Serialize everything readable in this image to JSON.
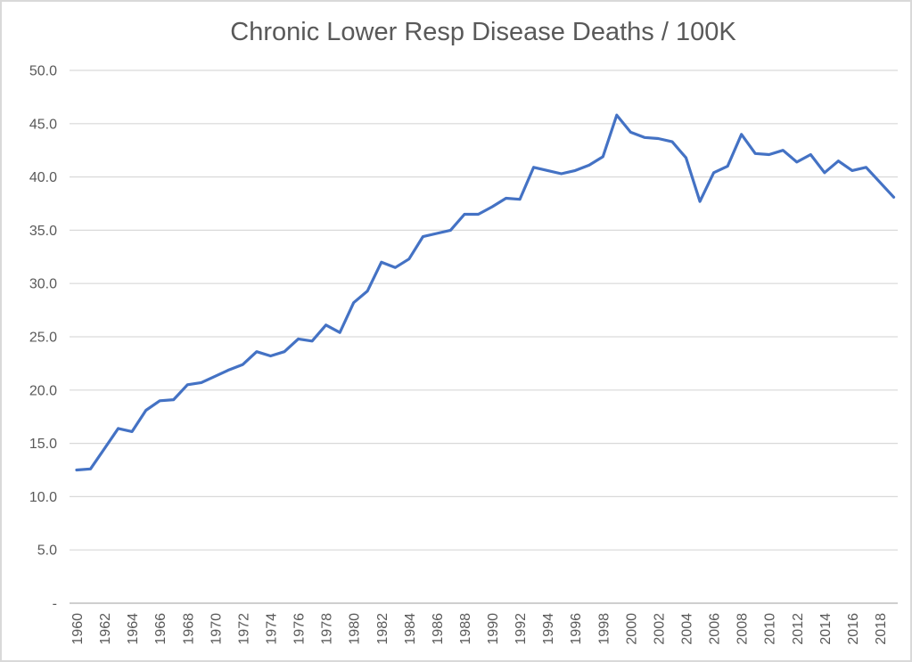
{
  "chart_data": {
    "type": "line",
    "title": "Chronic Lower Resp Disease Deaths / 100K",
    "xlabel": "",
    "ylabel": "",
    "x": [
      1960,
      1961,
      1962,
      1963,
      1964,
      1965,
      1966,
      1967,
      1968,
      1969,
      1970,
      1971,
      1972,
      1973,
      1974,
      1975,
      1976,
      1977,
      1978,
      1979,
      1980,
      1981,
      1982,
      1983,
      1984,
      1985,
      1986,
      1987,
      1988,
      1989,
      1990,
      1991,
      1992,
      1993,
      1994,
      1995,
      1996,
      1997,
      1998,
      1999,
      2000,
      2001,
      2002,
      2003,
      2004,
      2005,
      2006,
      2007,
      2008,
      2009,
      2010,
      2011,
      2012,
      2013,
      2014,
      2015,
      2016,
      2017,
      2018,
      2019
    ],
    "series": [
      {
        "name": "Chronic Lower Resp Disease Deaths per 100K",
        "values": [
          12.5,
          12.6,
          14.5,
          16.4,
          16.1,
          18.1,
          19.0,
          19.1,
          20.5,
          20.7,
          21.3,
          21.9,
          22.4,
          23.6,
          23.2,
          23.6,
          24.8,
          24.6,
          26.1,
          25.4,
          28.2,
          29.3,
          32.0,
          31.5,
          32.3,
          34.4,
          34.7,
          35.0,
          36.5,
          36.5,
          37.2,
          38.0,
          37.9,
          40.9,
          40.6,
          40.3,
          40.6,
          41.1,
          41.9,
          45.8,
          44.2,
          43.7,
          43.6,
          43.3,
          41.8,
          37.7,
          40.4,
          41.0,
          44.0,
          42.2,
          42.1,
          42.5,
          41.4,
          42.1,
          40.4,
          41.5,
          40.6,
          40.9,
          39.5,
          38.1
        ]
      }
    ],
    "ylim": [
      0,
      50
    ],
    "ytick_step": 5,
    "ytick_labels_top_to_bottom": [
      "50.0",
      "45.0",
      "40.0",
      "35.0",
      "30.0",
      "25.0",
      "20.0",
      "15.0",
      "10.0",
      "5.0",
      "-"
    ],
    "zero_tick_label": "-",
    "xtick_years": [
      1960,
      1962,
      1964,
      1966,
      1968,
      1970,
      1972,
      1974,
      1976,
      1978,
      1980,
      1982,
      1984,
      1986,
      1988,
      1990,
      1992,
      1994,
      1996,
      1998,
      2000,
      2002,
      2004,
      2006,
      2008,
      2010,
      2012,
      2014,
      2016,
      2018
    ],
    "grid": true,
    "legend": false
  },
  "colors": {
    "line": "#4472C4",
    "gridline": "#D9D9D9",
    "axis_line": "#BFBFBF",
    "text": "#595959",
    "frame_border": "#D9D9D9",
    "background": "#FFFFFF"
  }
}
